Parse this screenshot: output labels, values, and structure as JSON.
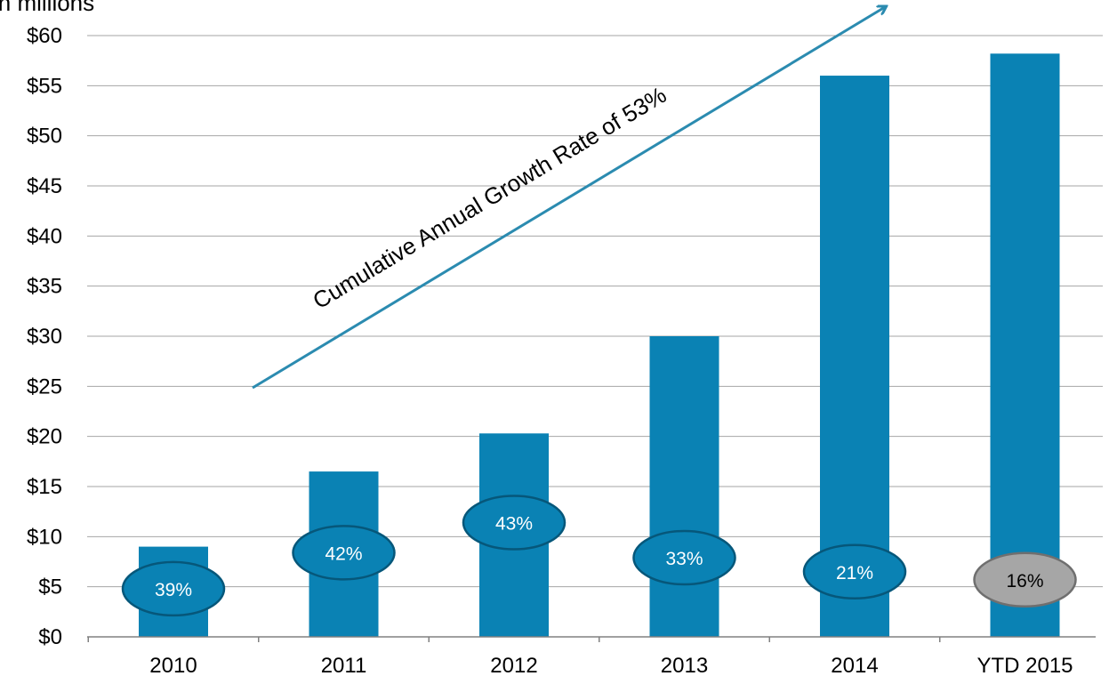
{
  "chart_data": {
    "type": "bar",
    "title": "",
    "ylabel": "in millions",
    "xlabel": "",
    "categories": [
      "2010",
      "2011",
      "2012",
      "2013",
      "2014",
      "YTD 2015"
    ],
    "values": [
      9,
      16.5,
      20.3,
      30,
      56,
      58.2
    ],
    "ylim": [
      0,
      60
    ],
    "yticks": [
      "$0",
      "$5",
      "$10",
      "$15",
      "$20",
      "$25",
      "$30",
      "$35",
      "$40",
      "$45",
      "$50",
      "$55",
      "$60"
    ],
    "grid": true,
    "bar_color": "#0a82b4",
    "growth_labels": [
      {
        "category": "2010",
        "text": "39%",
        "y_value": 4.8,
        "color": "#0a82b4"
      },
      {
        "category": "2011",
        "text": "42%",
        "y_value": 8.4,
        "color": "#0a82b4"
      },
      {
        "category": "2012",
        "text": "43%",
        "y_value": 11.4,
        "color": "#0a82b4"
      },
      {
        "category": "2013",
        "text": "33%",
        "y_value": 7.9,
        "color": "#0a82b4"
      },
      {
        "category": "2014",
        "text": "21%",
        "y_value": 6.5,
        "color": "#0a82b4"
      },
      {
        "category": "YTD 2015",
        "text": "16%",
        "y_value": 5.7,
        "color": "#a6a6a6"
      }
    ],
    "annotation": {
      "text": "Cumulative Annual Growth Rate of 53%",
      "color": "#2b8bb0"
    }
  }
}
